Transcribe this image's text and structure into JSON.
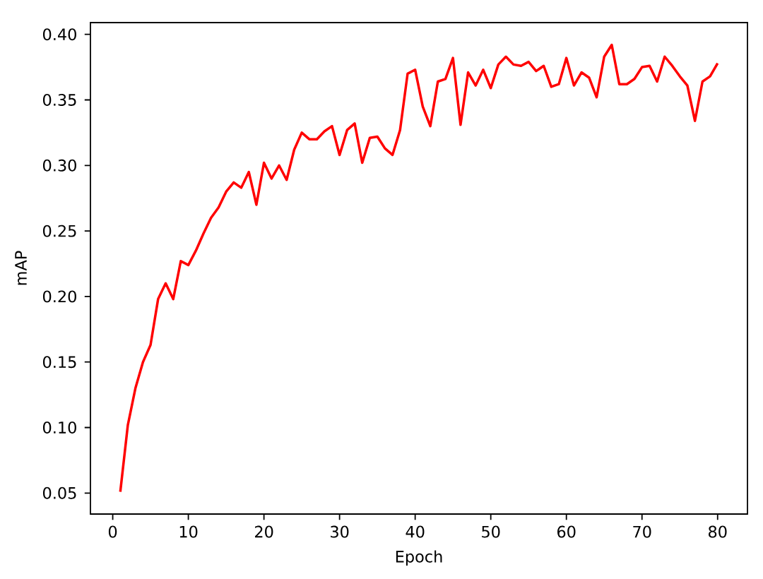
{
  "chart_data": {
    "type": "line",
    "xlabel": "Epoch",
    "ylabel": "mAP",
    "x": [
      1,
      2,
      3,
      4,
      5,
      6,
      7,
      8,
      9,
      10,
      11,
      12,
      13,
      14,
      15,
      16,
      17,
      18,
      19,
      20,
      21,
      22,
      23,
      24,
      25,
      26,
      27,
      28,
      29,
      30,
      31,
      32,
      33,
      34,
      35,
      36,
      37,
      38,
      39,
      40,
      41,
      42,
      43,
      44,
      45,
      46,
      47,
      48,
      49,
      50,
      51,
      52,
      53,
      54,
      55,
      56,
      57,
      58,
      59,
      60,
      61,
      62,
      63,
      64,
      65,
      66,
      67,
      68,
      69,
      70,
      71,
      72,
      73,
      74,
      75,
      76,
      77,
      78,
      79,
      80
    ],
    "series": [
      {
        "color": "#ff0000",
        "values": [
          0.051,
          0.102,
          0.13,
          0.15,
          0.163,
          0.198,
          0.21,
          0.198,
          0.227,
          0.224,
          0.235,
          0.248,
          0.26,
          0.268,
          0.28,
          0.287,
          0.283,
          0.295,
          0.27,
          0.302,
          0.29,
          0.3,
          0.289,
          0.312,
          0.325,
          0.32,
          0.32,
          0.326,
          0.33,
          0.308,
          0.327,
          0.332,
          0.302,
          0.321,
          0.322,
          0.313,
          0.308,
          0.327,
          0.37,
          0.373,
          0.345,
          0.33,
          0.364,
          0.366,
          0.382,
          0.331,
          0.371,
          0.361,
          0.373,
          0.359,
          0.377,
          0.383,
          0.377,
          0.376,
          0.379,
          0.372,
          0.376,
          0.36,
          0.362,
          0.382,
          0.361,
          0.371,
          0.367,
          0.352,
          0.383,
          0.392,
          0.362,
          0.362,
          0.366,
          0.375,
          0.376,
          0.364,
          0.383,
          0.376,
          0.368,
          0.361,
          0.334,
          0.364,
          0.368,
          0.378
        ]
      }
    ],
    "xlim": [
      -2.95,
      83.95
    ],
    "ylim": [
      0.034,
      0.409
    ],
    "xticks": [
      0,
      10,
      20,
      30,
      40,
      50,
      60,
      70,
      80
    ],
    "yticks": [
      0.05,
      {
        "value": 0.1,
        "label": "0.10"
      },
      0.15,
      {
        "value": 0.2,
        "label": "0.20"
      },
      0.25,
      {
        "value": 0.3,
        "label": "0.30"
      },
      0.35,
      {
        "value": 0.4,
        "label": "0.40"
      }
    ],
    "marker": "none",
    "line_style": "solid"
  }
}
